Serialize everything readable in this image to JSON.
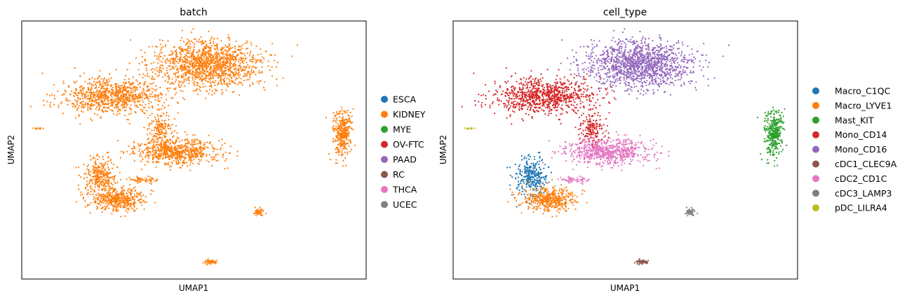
{
  "chart_data": [
    {
      "type": "scatter",
      "title": "batch",
      "xlabel": "UMAP1",
      "ylabel": "UMAP2",
      "grid": false,
      "ticks": false,
      "legend_position": "right",
      "legend": [
        {
          "label": "ESCA",
          "color": "#1f77b4"
        },
        {
          "label": "KIDNEY",
          "color": "#ff7f0e"
        },
        {
          "label": "MYE",
          "color": "#2ca02c"
        },
        {
          "label": "OV-FTC",
          "color": "#d62728"
        },
        {
          "label": "PAAD",
          "color": "#9467bd"
        },
        {
          "label": "RC",
          "color": "#8c564b"
        },
        {
          "label": "THCA",
          "color": "#e377c2"
        },
        {
          "label": "UCEC",
          "color": "#7f7f7f"
        }
      ],
      "clusters": [
        {
          "category": "KIDNEY",
          "center": [
            5.4,
            8.0
          ],
          "spread": [
            1.7,
            1.2
          ],
          "n": 1400
        },
        {
          "category": "KIDNEY",
          "center": [
            2.6,
            6.5
          ],
          "spread": [
            1.6,
            0.9
          ],
          "n": 900
        },
        {
          "category": "KIDNEY",
          "center": [
            4.5,
            3.9
          ],
          "spread": [
            1.4,
            0.7
          ],
          "n": 700
        },
        {
          "category": "KIDNEY",
          "center": [
            2.3,
            2.8
          ],
          "spread": [
            0.5,
            1.0
          ],
          "n": 300
        },
        {
          "category": "KIDNEY",
          "center": [
            2.8,
            1.7
          ],
          "spread": [
            0.9,
            0.6
          ],
          "n": 450
        },
        {
          "category": "KIDNEY",
          "center": [
            4.0,
            5.0
          ],
          "spread": [
            0.4,
            0.8
          ],
          "n": 150
        },
        {
          "category": "KIDNEY",
          "center": [
            9.3,
            4.8
          ],
          "spread": [
            0.3,
            1.2
          ],
          "n": 350
        },
        {
          "category": "KIDNEY",
          "center": [
            3.5,
            2.6
          ],
          "spread": [
            0.5,
            0.15
          ],
          "n": 60
        },
        {
          "category": "KIDNEY",
          "center": [
            6.9,
            1.1
          ],
          "spread": [
            0.2,
            0.2
          ],
          "n": 50
        },
        {
          "category": "KIDNEY",
          "center": [
            5.5,
            -1.2
          ],
          "spread": [
            0.2,
            0.12
          ],
          "n": 50
        },
        {
          "category": "KIDNEY",
          "center": [
            0.5,
            5.0
          ],
          "spread": [
            0.12,
            0.05
          ],
          "n": 15
        }
      ],
      "xlim": [
        0,
        10
      ],
      "ylim": [
        -2,
        10
      ]
    },
    {
      "type": "scatter",
      "title": "cell_type",
      "xlabel": "UMAP1",
      "ylabel": "UMAP2",
      "grid": false,
      "ticks": false,
      "legend_position": "right",
      "legend": [
        {
          "label": "Macro_C1QC",
          "color": "#1f77b4"
        },
        {
          "label": "Macro_LYVE1",
          "color": "#ff7f0e"
        },
        {
          "label": "Mast_KIT",
          "color": "#2ca02c"
        },
        {
          "label": "Mono_CD14",
          "color": "#d62728"
        },
        {
          "label": "Mono_CD16",
          "color": "#9467bd"
        },
        {
          "label": "cDC1_CLEC9A",
          "color": "#8c564b"
        },
        {
          "label": "cDC2_CD1C",
          "color": "#e377c2"
        },
        {
          "label": "cDC3_LAMP3",
          "color": "#7f7f7f"
        },
        {
          "label": "pDC_LILRA4",
          "color": "#bcbd22"
        }
      ],
      "clusters": [
        {
          "category": "Mono_CD16",
          "center": [
            5.4,
            8.0
          ],
          "spread": [
            1.7,
            1.2
          ],
          "n": 1400
        },
        {
          "category": "Mono_CD14",
          "center": [
            2.6,
            6.5
          ],
          "spread": [
            1.6,
            0.9
          ],
          "n": 900
        },
        {
          "category": "cDC2_CD1C",
          "center": [
            4.5,
            3.9
          ],
          "spread": [
            1.4,
            0.7
          ],
          "n": 700
        },
        {
          "category": "Macro_C1QC",
          "center": [
            2.3,
            2.8
          ],
          "spread": [
            0.5,
            1.0
          ],
          "n": 300
        },
        {
          "category": "Macro_LYVE1",
          "center": [
            2.8,
            1.7
          ],
          "spread": [
            0.9,
            0.6
          ],
          "n": 450
        },
        {
          "category": "Mono_CD14",
          "center": [
            4.0,
            5.0
          ],
          "spread": [
            0.4,
            0.8
          ],
          "n": 150
        },
        {
          "category": "Mast_KIT",
          "center": [
            9.3,
            4.8
          ],
          "spread": [
            0.3,
            1.2
          ],
          "n": 350
        },
        {
          "category": "cDC2_CD1C",
          "center": [
            3.5,
            2.6
          ],
          "spread": [
            0.5,
            0.15
          ],
          "n": 60
        },
        {
          "category": "cDC3_LAMP3",
          "center": [
            6.9,
            1.1
          ],
          "spread": [
            0.2,
            0.2
          ],
          "n": 50
        },
        {
          "category": "cDC1_CLEC9A",
          "center": [
            5.5,
            -1.2
          ],
          "spread": [
            0.2,
            0.12
          ],
          "n": 50
        },
        {
          "category": "pDC_LILRA4",
          "center": [
            0.5,
            5.0
          ],
          "spread": [
            0.12,
            0.05
          ],
          "n": 15
        }
      ],
      "xlim": [
        0,
        10
      ],
      "ylim": [
        -2,
        10
      ]
    }
  ]
}
